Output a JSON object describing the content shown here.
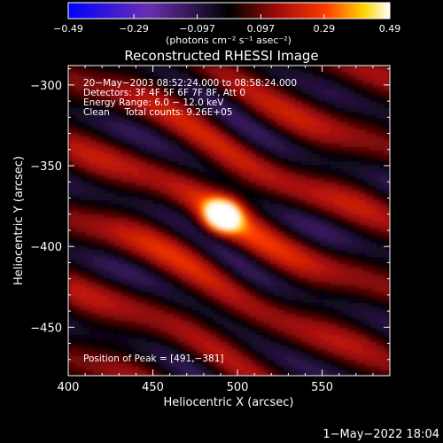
{
  "chart_data": {
    "type": "heatmap",
    "title": "Reconstructed RHESSI Image",
    "xlabel": "Heliocentric X (arcsec)",
    "ylabel": "Heliocentric Y (arcsec)",
    "xlim": [
      400,
      590
    ],
    "ylim": [
      -480,
      -288
    ],
    "x_ticks": [
      400,
      450,
      500,
      550
    ],
    "y_ticks": [
      -300,
      -350,
      -400,
      -450
    ],
    "x_tick_labels": [
      "400",
      "450",
      "500",
      "550"
    ],
    "y_tick_labels": [
      "−300",
      "−350",
      "−400",
      "−450"
    ],
    "colorbar": {
      "min": -0.49,
      "max": 0.49,
      "tick_values": [
        -0.49,
        -0.29,
        -0.097,
        0.097,
        0.29,
        0.49
      ],
      "tick_labels": [
        "−0.49",
        "−0.29",
        "−0.097",
        "0.097",
        "0.29",
        "0.49"
      ],
      "unit_label": "(photons cm⁻² s⁻¹ asec⁻²)"
    },
    "annotations": [
      "20−May−2003 08:52:24.000 to 08:58:24.000",
      "Detectors: 3F 4F 5F 6F 7F 8F, Att 0",
      "Energy Range: 6.0 − 12.0 keV",
      "Clean     Total counts: 9.26E+05"
    ],
    "peak_label": "Position of Peak = [491,−381]",
    "peak": {
      "x": 491,
      "y": -381,
      "value": 0.49
    },
    "timestamp": "1−May−2022 18:04"
  }
}
